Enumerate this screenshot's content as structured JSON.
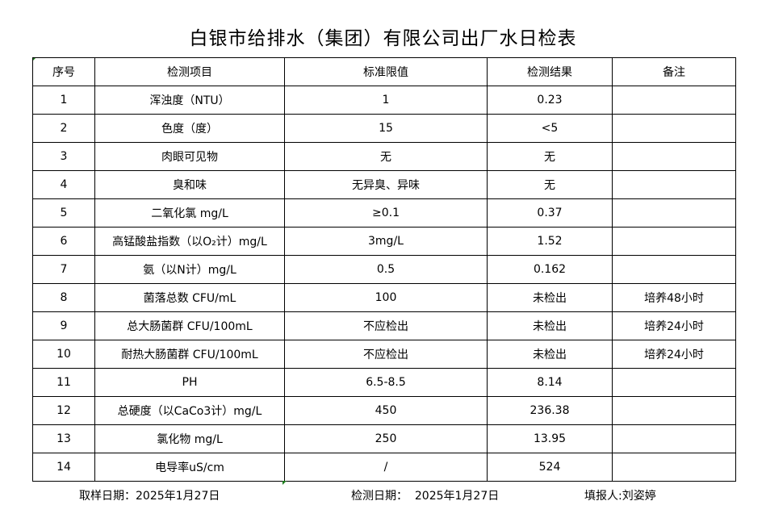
{
  "title": "白银市给排水（集团）有限公司出厂水日检表",
  "headers": [
    "序号",
    "检测项目",
    "标准限值",
    "检测结果",
    "备注"
  ],
  "rows": [
    [
      "1",
      "浑浊度（NTU）",
      "1",
      "0.23",
      ""
    ],
    [
      "2",
      "色度（度）",
      "15",
      "<5",
      ""
    ],
    [
      "3",
      "肉眼可见物",
      "无",
      "无",
      ""
    ],
    [
      "4",
      "臭和味",
      "无异臭、异味",
      "无",
      ""
    ],
    [
      "5",
      "二氧化氯 mg/L",
      "≥0.1",
      "0.37",
      ""
    ],
    [
      "6",
      "高锰酸盐指数（以O₂计）mg/L",
      "3mg/L",
      "1.52",
      ""
    ],
    [
      "7",
      "氨（以N计）mg/L",
      "0.5",
      "0.162",
      ""
    ],
    [
      "8",
      "菌落总数 CFU/mL",
      "100",
      "未检出",
      "培养48小时"
    ],
    [
      "9",
      "总大肠菌群 CFU/100mL",
      "不应检出",
      "未检出",
      "培养24小时"
    ],
    [
      "10",
      "耐热大肠菌群 CFU/100mL",
      "不应检出",
      "未检出",
      "培养24小时"
    ],
    [
      "11",
      "PH",
      "6.5-8.5",
      "8.14",
      ""
    ],
    [
      "12",
      "总硬度（以CaCo3计）mg/L",
      "450",
      "236.38",
      ""
    ],
    [
      "13",
      "氯化物 mg/L",
      "250",
      "13.95",
      ""
    ],
    [
      "14",
      "电导率uS/cm",
      "/",
      "524",
      ""
    ]
  ],
  "footer": {
    "sampling_date": "取样日期：2025年1月27日",
    "test_date": "检测日期：  2025年1月27日",
    "reporter": "填报人:刘姿婷"
  }
}
